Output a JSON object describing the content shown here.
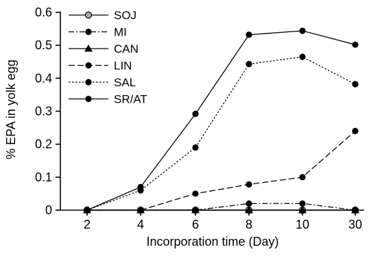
{
  "chart_data": {
    "type": "line",
    "xlabel": "Incorporation time (Day)",
    "ylabel": "% EPA in yolk egg",
    "categories": [
      "2",
      "4",
      "6",
      "8",
      "10",
      "30"
    ],
    "ylim": [
      0,
      0.6
    ],
    "yticks": [
      "0",
      "0.1",
      "0.2",
      "0.3",
      "0.4",
      "0.5",
      "0.6"
    ],
    "grid": false,
    "legend_position": "top-left",
    "series": [
      {
        "name": "SOJ",
        "values": [
          0,
          0,
          0,
          0,
          0,
          0
        ],
        "marker": "circle-gray",
        "line": "solid"
      },
      {
        "name": "MI",
        "values": [
          0,
          0,
          0,
          0.02,
          0.02,
          0
        ],
        "marker": "circle",
        "line": "dashdot"
      },
      {
        "name": "CAN",
        "values": [
          0,
          0,
          0,
          0,
          0,
          0
        ],
        "marker": "triangle",
        "line": "solid"
      },
      {
        "name": "LIN",
        "values": [
          0,
          0,
          0.05,
          0.078,
          0.1,
          0.24
        ],
        "marker": "circle",
        "line": "longdash"
      },
      {
        "name": "SAL",
        "values": [
          0,
          0.06,
          0.19,
          0.443,
          0.465,
          0.382
        ],
        "marker": "circle",
        "line": "dotted"
      },
      {
        "name": "SR/AT",
        "values": [
          0,
          0.07,
          0.292,
          0.532,
          0.544,
          0.502
        ],
        "marker": "circle",
        "line": "solid"
      }
    ]
  }
}
